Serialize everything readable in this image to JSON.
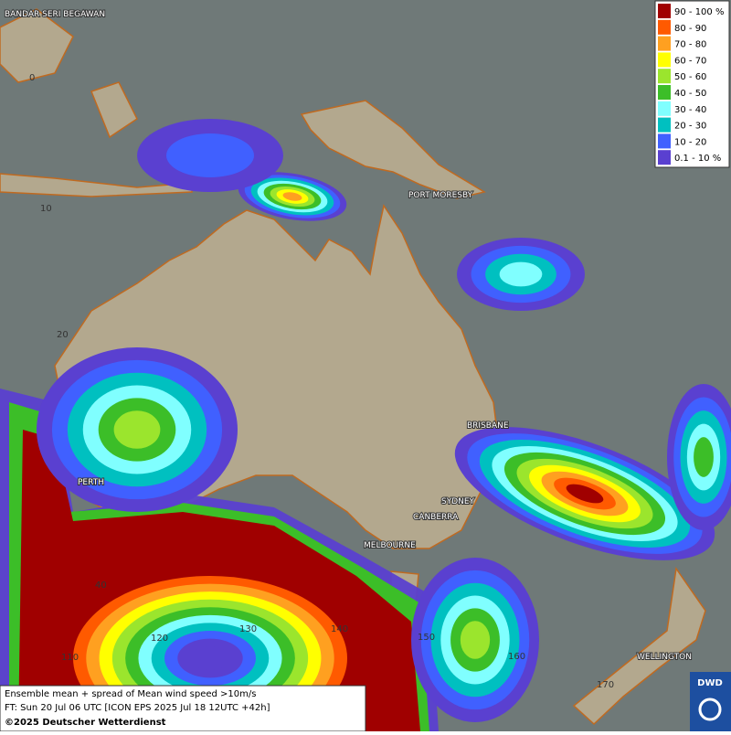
{
  "legend": {
    "items": [
      {
        "label": "90 - 100 %",
        "color": "#a00000"
      },
      {
        "label": "80 - 90",
        "color": "#ff5a00"
      },
      {
        "label": "70 - 80",
        "color": "#ffa020"
      },
      {
        "label": "60 - 70",
        "color": "#ffff00"
      },
      {
        "label": "50 - 60",
        "color": "#9be52d"
      },
      {
        "label": "40 - 50",
        "color": "#3cbe28"
      },
      {
        "label": "30 - 40",
        "color": "#80ffff"
      },
      {
        "label": "20 - 30",
        "color": "#00c0c0"
      },
      {
        "label": "10 - 20",
        "color": "#4060ff"
      },
      {
        "label": "0.1 - 10 %",
        "color": "#5a40d0"
      }
    ]
  },
  "places": [
    "BANDAR SERI BEGAWAN",
    "PORT MORESBY",
    "BRISBANE",
    "SYDNEY",
    "CANBERRA",
    "MELBOURNE",
    "PERTH",
    "WELLINGTON"
  ],
  "grid_labels": [
    "0",
    "10",
    "20",
    "40",
    "110",
    "120",
    "130",
    "140",
    "150",
    "160",
    "170"
  ],
  "footer": {
    "line1": "Ensemble mean + spread of Mean wind speed >10m/s",
    "line2": "FT: Sun 20 Jul 06 UTC [ICON EPS 2025 Jul 18 12UTC +42h]",
    "line3": "©2025 Deutscher Wetterdienst"
  },
  "logo": "DWD"
}
